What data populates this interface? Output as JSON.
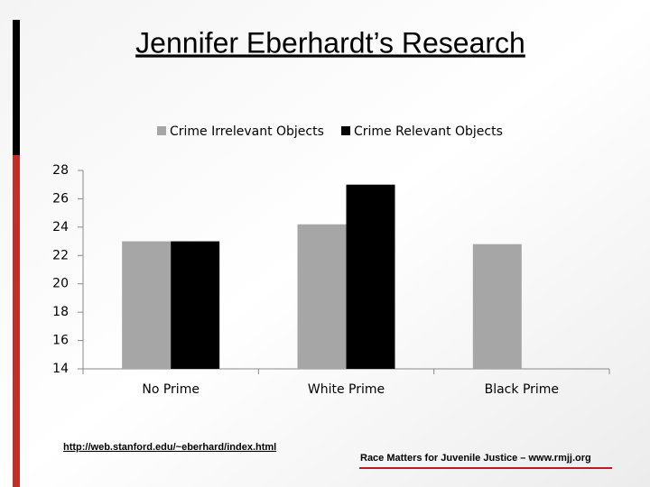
{
  "chart_data": {
    "type": "bar",
    "title": "Jennifer Eberhardt’s Research",
    "categories": [
      "No Prime",
      "White Prime",
      "Black Prime"
    ],
    "series": [
      {
        "name": "Crime Irrelevant Objects",
        "color": "#a6a6a6",
        "values": [
          23,
          24.2,
          22.8
        ]
      },
      {
        "name": "Crime Relevant Objects",
        "color": "#000000",
        "values": [
          23,
          27,
          null
        ]
      }
    ],
    "ylim": [
      14,
      28
    ],
    "yticks": [
      14,
      16,
      18,
      20,
      22,
      24,
      26,
      28
    ],
    "grid": false,
    "legend": "top"
  },
  "source_link": "http://web.stanford.edu/~eberhard/index.html",
  "footer": "Race Matters for Juvenile Justice – www.rmjj.org"
}
